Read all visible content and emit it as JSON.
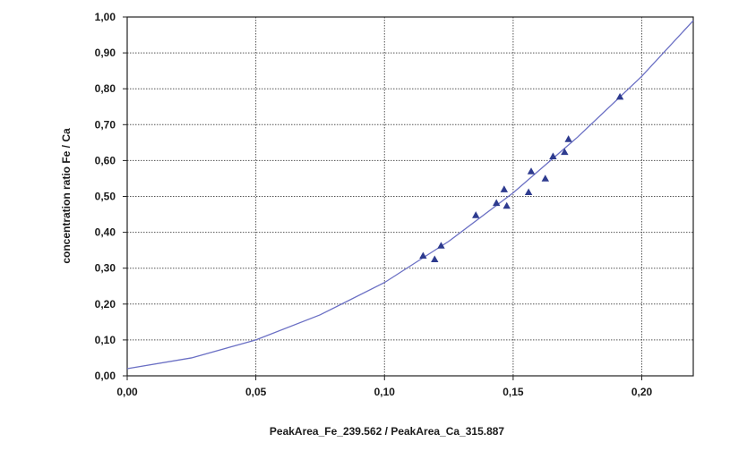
{
  "chart_data": {
    "type": "scatter",
    "title": "",
    "xlabel": "PeakArea_Fe_239.562 / PeakArea_Ca_315.887",
    "ylabel": "concentration ratio Fe / Ca",
    "xlim": [
      0,
      0.22
    ],
    "ylim": [
      0,
      1.0
    ],
    "x_ticks": [
      0,
      0.05,
      0.1,
      0.15,
      0.2
    ],
    "x_tick_labels": [
      "0,00",
      "0,05",
      "0,10",
      "0,15",
      "0,20"
    ],
    "y_ticks": [
      0,
      0.1,
      0.2,
      0.3,
      0.4,
      0.5,
      0.6,
      0.7,
      0.8,
      0.9,
      1.0
    ],
    "y_tick_labels": [
      "0,00",
      "0,10",
      "0,20",
      "0,30",
      "0,40",
      "0,50",
      "0,60",
      "0,70",
      "0,80",
      "0,90",
      "1,00"
    ],
    "grid": true,
    "colors": {
      "points": "#2e3b8f",
      "curve": "#6a6fc4",
      "grid": "#555555",
      "frame": "#222222",
      "background": "#ffffff"
    },
    "series": [
      {
        "type": "scatter",
        "marker": "triangle",
        "points": [
          {
            "x": 0.115,
            "y": 0.335
          },
          {
            "x": 0.1195,
            "y": 0.325
          },
          {
            "x": 0.122,
            "y": 0.363
          },
          {
            "x": 0.1355,
            "y": 0.448
          },
          {
            "x": 0.1435,
            "y": 0.482
          },
          {
            "x": 0.1465,
            "y": 0.52
          },
          {
            "x": 0.1475,
            "y": 0.474
          },
          {
            "x": 0.156,
            "y": 0.512
          },
          {
            "x": 0.157,
            "y": 0.57
          },
          {
            "x": 0.1625,
            "y": 0.55
          },
          {
            "x": 0.1655,
            "y": 0.612
          },
          {
            "x": 0.17,
            "y": 0.624
          },
          {
            "x": 0.1715,
            "y": 0.66
          },
          {
            "x": 0.1915,
            "y": 0.778
          }
        ]
      },
      {
        "type": "line",
        "points": [
          {
            "x": 0.0,
            "y": 0.02
          },
          {
            "x": 0.025,
            "y": 0.05
          },
          {
            "x": 0.05,
            "y": 0.1
          },
          {
            "x": 0.075,
            "y": 0.17
          },
          {
            "x": 0.1,
            "y": 0.26
          },
          {
            "x": 0.125,
            "y": 0.375
          },
          {
            "x": 0.15,
            "y": 0.51
          },
          {
            "x": 0.175,
            "y": 0.665
          },
          {
            "x": 0.2,
            "y": 0.835
          },
          {
            "x": 0.22,
            "y": 0.99
          }
        ]
      }
    ]
  }
}
